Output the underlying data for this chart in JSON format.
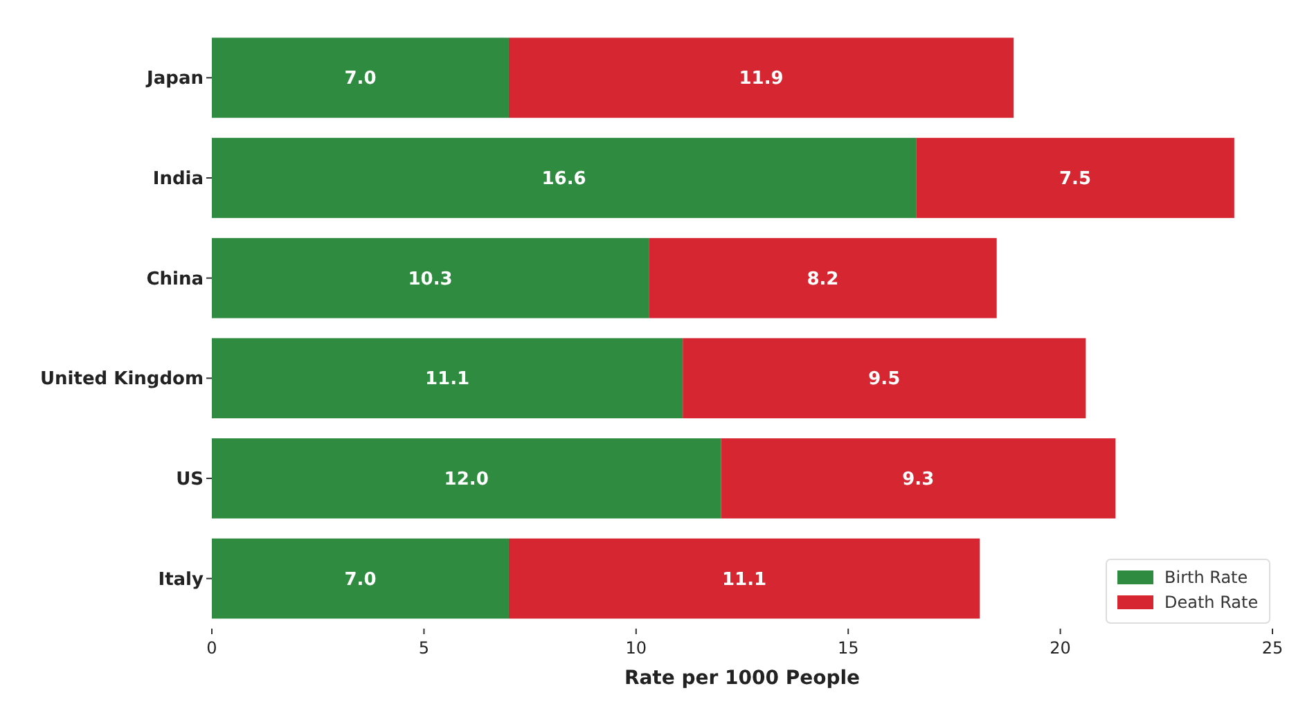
{
  "chart_data": {
    "type": "bar",
    "orientation": "horizontal",
    "stacked": true,
    "xlabel": "Rate per 1000 People",
    "categories": [
      "Japan",
      "India",
      "China",
      "United Kingdom",
      "US",
      "Italy"
    ],
    "series": [
      {
        "name": "Birth Rate",
        "color": "#2e8b40",
        "values": [
          7.0,
          16.6,
          10.3,
          11.1,
          12.0,
          7.0
        ],
        "value_labels": [
          "7.0",
          "16.6",
          "10.3",
          "11.1",
          "12.0",
          "7.0"
        ]
      },
      {
        "name": "Death Rate",
        "color": "#d62631",
        "values": [
          11.9,
          7.5,
          8.2,
          9.5,
          9.3,
          11.1
        ],
        "value_labels": [
          "11.9",
          "7.5",
          "8.2",
          "9.5",
          "9.3",
          "11.1"
        ]
      }
    ],
    "xlim": [
      0,
      25
    ],
    "xticks": [
      0,
      5,
      10,
      15,
      20,
      25
    ],
    "legend": "bottom right",
    "grid": false
  }
}
